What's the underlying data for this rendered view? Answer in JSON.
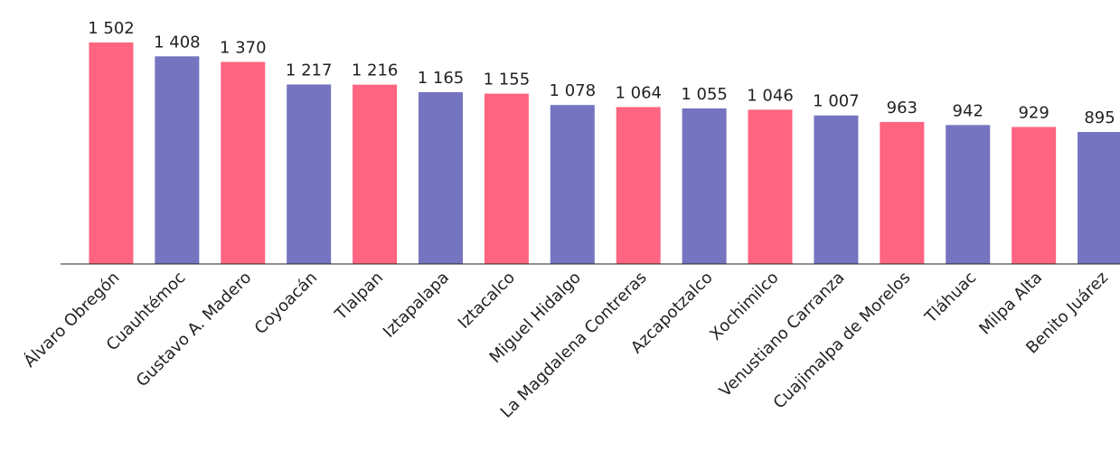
{
  "chart_data": {
    "type": "bar",
    "categories": [
      "Álvaro Obregón",
      "Cuauhtémoc",
      "Gustavo A. Madero",
      "Coyoacán",
      "Tlalpan",
      "Iztapalapa",
      "Iztacalco",
      "Miguel Hidalgo",
      "La Magdalena Contreras",
      "Azcapotzalco",
      "Xochimilco",
      "Venustiano Carranza",
      "Cuajimalpa de Morelos",
      "Tláhuac",
      "Milpa Alta",
      "Benito Juárez"
    ],
    "values": [
      1502,
      1408,
      1370,
      1217,
      1216,
      1165,
      1155,
      1078,
      1064,
      1055,
      1046,
      1007,
      963,
      942,
      929,
      895
    ],
    "value_labels": [
      "1 502",
      "1 408",
      "1 370",
      "1 217",
      "1 216",
      "1 165",
      "1 155",
      "1 078",
      "1 064",
      "1 055",
      "1 046",
      "1 007",
      "963",
      "942",
      "929",
      "895"
    ],
    "colors": [
      "#ff6480",
      "#7474c0",
      "#ff6480",
      "#7474c0",
      "#ff6480",
      "#7474c0",
      "#ff6480",
      "#7474c0",
      "#ff6480",
      "#7474c0",
      "#ff6480",
      "#7474c0",
      "#ff6480",
      "#7474c0",
      "#ff6480",
      "#7474c0"
    ],
    "ylim": [
      0,
      1600
    ]
  }
}
